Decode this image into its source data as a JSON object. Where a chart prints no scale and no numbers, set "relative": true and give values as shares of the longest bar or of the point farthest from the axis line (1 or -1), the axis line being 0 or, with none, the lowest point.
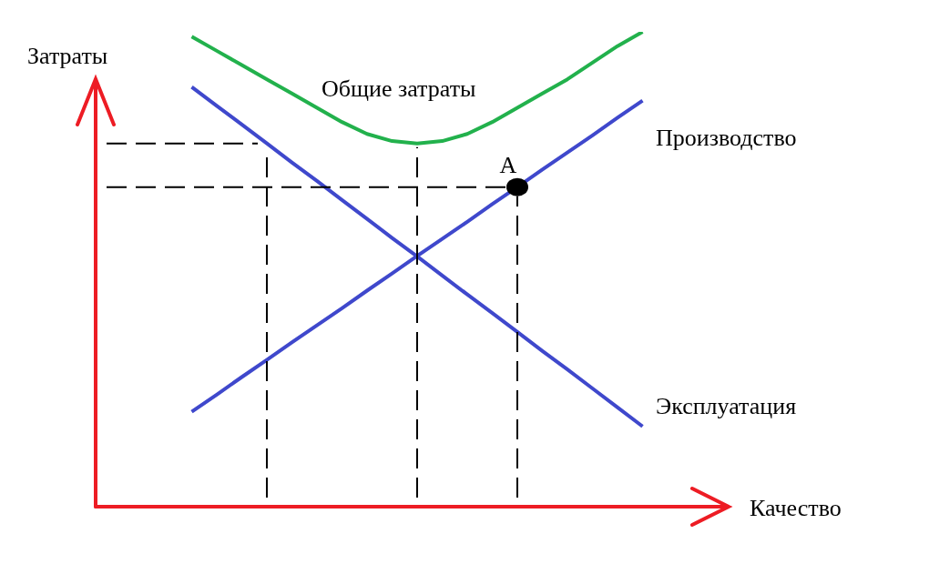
{
  "chart_data": {
    "type": "line",
    "relative": true,
    "xlabel": "Качество",
    "ylabel": "Затраты",
    "marker": "none",
    "line_style": "solid",
    "categories": [
      null,
      null,
      null,
      null,
      null,
      null,
      null,
      null,
      null,
      null,
      null,
      null,
      null,
      null,
      null,
      null,
      null,
      null,
      null
    ],
    "series": [
      {
        "name": "Общие затраты",
        "color": "#22b14c",
        "values": [
          0.99,
          0.96,
          0.93,
          0.9,
          0.87,
          0.84,
          0.81,
          0.785,
          0.77,
          0.765,
          0.77,
          0.785,
          0.81,
          0.84,
          0.87,
          0.9,
          0.935,
          0.97,
          1.0
        ]
      },
      {
        "name": "Производство",
        "color": "#3f48cc",
        "values": [
          0.2,
          0.236,
          0.273,
          0.309,
          0.346,
          0.382,
          0.418,
          0.455,
          0.491,
          0.528,
          0.564,
          0.6,
          0.637,
          0.673,
          0.71,
          0.746,
          0.782,
          0.819,
          0.855
        ]
      },
      {
        "name": "Эксплуатация",
        "color": "#3f48cc",
        "values": [
          0.884,
          0.844,
          0.805,
          0.765,
          0.725,
          0.686,
          0.646,
          0.606,
          0.566,
          0.527,
          0.487,
          0.447,
          0.408,
          0.368,
          0.328,
          0.289,
          0.249,
          0.209,
          0.169
        ]
      }
    ],
    "annotations": [
      {
        "text": "A",
        "y": 0.673
      }
    ]
  }
}
